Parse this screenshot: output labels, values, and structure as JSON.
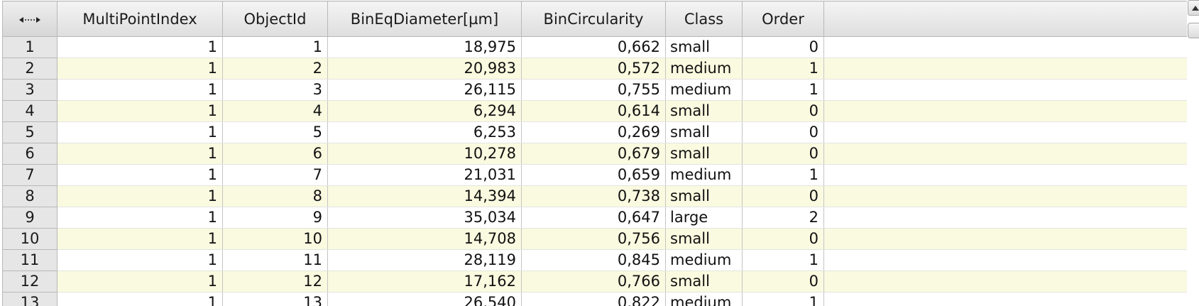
{
  "corner_icon": "resize-columns-icon",
  "columns": [
    "MultiPointIndex",
    "ObjectId",
    "BinEqDiameter[µm]",
    "BinCircularity",
    "Class",
    "Order"
  ],
  "rows": [
    {
      "row": "1",
      "multi_point_index": "1",
      "object_id": "1",
      "bin_eq_diameter": "18,975",
      "bin_circularity": "0,662",
      "class": "small",
      "order": "0"
    },
    {
      "row": "2",
      "multi_point_index": "1",
      "object_id": "2",
      "bin_eq_diameter": "20,983",
      "bin_circularity": "0,572",
      "class": "medium",
      "order": "1"
    },
    {
      "row": "3",
      "multi_point_index": "1",
      "object_id": "3",
      "bin_eq_diameter": "26,115",
      "bin_circularity": "0,755",
      "class": "medium",
      "order": "1"
    },
    {
      "row": "4",
      "multi_point_index": "1",
      "object_id": "4",
      "bin_eq_diameter": "6,294",
      "bin_circularity": "0,614",
      "class": "small",
      "order": "0"
    },
    {
      "row": "5",
      "multi_point_index": "1",
      "object_id": "5",
      "bin_eq_diameter": "6,253",
      "bin_circularity": "0,269",
      "class": "small",
      "order": "0"
    },
    {
      "row": "6",
      "multi_point_index": "1",
      "object_id": "6",
      "bin_eq_diameter": "10,278",
      "bin_circularity": "0,679",
      "class": "small",
      "order": "0"
    },
    {
      "row": "7",
      "multi_point_index": "1",
      "object_id": "7",
      "bin_eq_diameter": "21,031",
      "bin_circularity": "0,659",
      "class": "medium",
      "order": "1"
    },
    {
      "row": "8",
      "multi_point_index": "1",
      "object_id": "8",
      "bin_eq_diameter": "14,394",
      "bin_circularity": "0,738",
      "class": "small",
      "order": "0"
    },
    {
      "row": "9",
      "multi_point_index": "1",
      "object_id": "9",
      "bin_eq_diameter": "35,034",
      "bin_circularity": "0,647",
      "class": "large",
      "order": "2"
    },
    {
      "row": "10",
      "multi_point_index": "1",
      "object_id": "10",
      "bin_eq_diameter": "14,708",
      "bin_circularity": "0,756",
      "class": "small",
      "order": "0"
    },
    {
      "row": "11",
      "multi_point_index": "1",
      "object_id": "11",
      "bin_eq_diameter": "28,119",
      "bin_circularity": "0,845",
      "class": "medium",
      "order": "1"
    },
    {
      "row": "12",
      "multi_point_index": "1",
      "object_id": "12",
      "bin_eq_diameter": "17,162",
      "bin_circularity": "0,766",
      "class": "small",
      "order": "0"
    },
    {
      "row": "13",
      "multi_point_index": "1",
      "object_id": "13",
      "bin_eq_diameter": "26,540",
      "bin_circularity": "0,822",
      "class": "medium",
      "order": "1"
    }
  ],
  "colors": {
    "header_bg": "#e4e4e4",
    "row_alt_bg": "#fafae0",
    "row_bg": "#ffffff",
    "grid_line": "#c4c4c4"
  }
}
